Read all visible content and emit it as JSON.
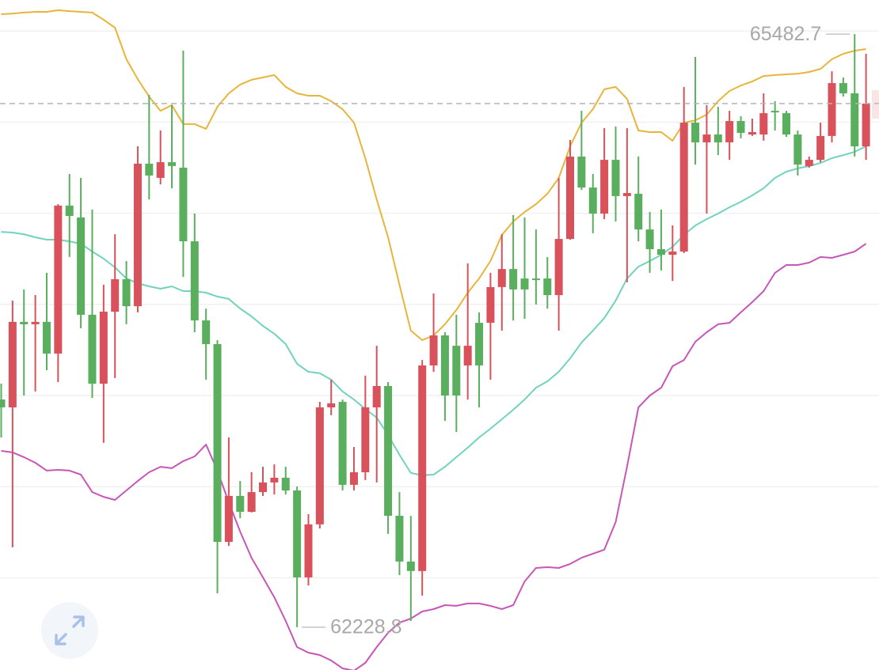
{
  "chart_data": {
    "type": "candlestick",
    "colors": {
      "up": "#d9515b",
      "down": "#5aaf5f"
    },
    "open": [
      63478,
      63435,
      63904,
      63891,
      63904,
      63730,
      64542,
      64477,
      63943,
      63565,
      63960,
      64138,
      63990,
      64772,
      64694,
      64780,
      64750,
      64346,
      63912,
      63782,
      62697,
      62949,
      62862,
      62970,
      63023,
      63049,
      62979,
      62502,
      62793,
      63435,
      63465,
      63010,
      63079,
      63435,
      63552,
      62840,
      62589,
      62537,
      63665,
      63830,
      63773,
      63665,
      63899,
      63899,
      64095,
      64194,
      64142,
      64142,
      64142,
      64051,
      64359,
      64811,
      64641,
      64498,
      64793,
      64594,
      64607,
      64411,
      64303,
      64272,
      64290,
      64997,
      64889,
      64932,
      64889,
      65006,
      64932,
      64932,
      65062,
      65049,
      64932,
      64759,
      64793,
      64924,
      65214,
      65158,
      64867
    ],
    "high": [
      63565,
      64021,
      64082,
      64051,
      64173,
      64550,
      64715,
      64694,
      64520,
      64108,
      64385,
      64238,
      64867,
      65149,
      64954,
      65093,
      65392,
      64498,
      63977,
      63804,
      63270,
      63031,
      63079,
      63109,
      63122,
      63109,
      63001,
      62849,
      63465,
      63587,
      63478,
      63218,
      63609,
      63773,
      63574,
      62970,
      62840,
      63695,
      64060,
      63847,
      63943,
      64225,
      63956,
      64173,
      64385,
      64490,
      64477,
      64411,
      64260,
      64694,
      64902,
      65062,
      64715,
      64967,
      64976,
      64967,
      64811,
      64507,
      64520,
      64433,
      65193,
      65358,
      65093,
      65084,
      65062,
      65032,
      65019,
      65158,
      65115,
      65062,
      64954,
      64811,
      64997,
      65279,
      65245,
      65482.7,
      65375
    ],
    "low": [
      63270,
      62667,
      63500,
      63522,
      63639,
      63574,
      64260,
      63869,
      63487,
      63240,
      63596,
      63891,
      63956,
      64576,
      64659,
      64637,
      64151,
      63847,
      63587,
      62415,
      62675,
      62827,
      62858,
      62949,
      62957,
      62957,
      62228.8,
      62458,
      62771,
      63392,
      62979,
      62979,
      63036,
      63023,
      62741,
      62515,
      62263,
      62402,
      63630,
      63361,
      63300,
      63478,
      63435,
      63587,
      63856,
      63912,
      63921,
      63999,
      63977,
      63856,
      64355,
      64628,
      64390,
      64468,
      64455,
      64121,
      64346,
      64173,
      64186,
      64129,
      64281,
      64767,
      64498,
      64819,
      64793,
      64911,
      64924,
      64898,
      64954,
      64919,
      64707,
      64750,
      64780,
      64889,
      65140,
      64811,
      64793
    ],
    "close": [
      63435,
      63904,
      63891,
      63904,
      63730,
      64542,
      64485,
      63943,
      63565,
      63960,
      64138,
      63990,
      64772,
      64707,
      64780,
      64759,
      64346,
      63912,
      63782,
      62697,
      62949,
      62862,
      62970,
      63023,
      63049,
      62979,
      62502,
      62793,
      63435,
      63457,
      63010,
      63079,
      63435,
      63552,
      62840,
      62589,
      62537,
      63665,
      63830,
      63500,
      63500,
      63773,
      63665,
      64095,
      64194,
      64082,
      64082,
      64138,
      64051,
      64359,
      64811,
      64641,
      64498,
      64793,
      64594,
      64611,
      64411,
      64303,
      64272,
      64290,
      64997,
      64889,
      64932,
      64889,
      65006,
      64941,
      64945,
      65049,
      65054,
      64932,
      64767,
      64793,
      64924,
      65214,
      65158,
      64867,
      65102
    ],
    "bands": {
      "upper": {
        "color": "#e8b53b",
        "values": [
          65592,
          65596,
          65601,
          65605,
          65605,
          65614,
          65609,
          65605,
          65601,
          65562,
          65518,
          65345,
          65236,
          65140,
          65062,
          65093,
          64989,
          64989,
          64963,
          65084,
          65158,
          65206,
          65232,
          65245,
          65258,
          65193,
          65158,
          65145,
          65145,
          65115,
          65071,
          64997,
          64802,
          64576,
          64368,
          64108,
          63856,
          63804,
          63830,
          63891,
          63969,
          64064,
          64142,
          64238,
          64381,
          64455,
          64507,
          64550,
          64607,
          64694,
          64867,
          64997,
          65071,
          65180,
          65193,
          65128,
          64954,
          64945,
          64945,
          64898,
          64997,
          65010,
          65041,
          65115,
          65171,
          65201,
          65223,
          65253,
          65258,
          65262,
          65266,
          65275,
          65292,
          65345,
          65375,
          65392,
          65401
        ]
      },
      "middle": {
        "color": "#71d3bd",
        "values": [
          64398,
          64394,
          64385,
          64368,
          64355,
          64355,
          64346,
          64333,
          64290,
          64251,
          64203,
          64142,
          64116,
          64099,
          64086,
          64099,
          64073,
          64073,
          64064,
          64043,
          64030,
          63977,
          63934,
          63882,
          63839,
          63782,
          63674,
          63630,
          63622,
          63587,
          63522,
          63478,
          63426,
          63379,
          63283,
          63175,
          63075,
          63062,
          63066,
          63109,
          63162,
          63214,
          63270,
          63318,
          63370,
          63422,
          63478,
          63543,
          63578,
          63630,
          63704,
          63791,
          63856,
          63925,
          64021,
          64142,
          64207,
          64238,
          64272,
          64316,
          64381,
          64433,
          64468,
          64498,
          64533,
          64563,
          64598,
          64637,
          64694,
          64728,
          64746,
          64759,
          64776,
          64802,
          64819,
          64837,
          64867
        ]
      },
      "lower": {
        "color": "#c756b8",
        "values": [
          63196,
          63188,
          63162,
          63131,
          63088,
          63092,
          63088,
          63066,
          62970,
          62944,
          62927,
          62979,
          63031,
          63079,
          63109,
          63101,
          63140,
          63166,
          63231,
          63088,
          62914,
          62753,
          62610,
          62502,
          62393,
          62263,
          62120,
          62089,
          62076,
          62046,
          62003,
          61990,
          62033,
          62120,
          62198,
          62254,
          62276,
          62315,
          62328,
          62350,
          62346,
          62359,
          62359,
          62346,
          62328,
          62350,
          62480,
          62554,
          62558,
          62554,
          62576,
          62610,
          62632,
          62654,
          62806,
          63109,
          63435,
          63500,
          63543,
          63661,
          63695,
          63795,
          63847,
          63891,
          63899,
          63956,
          64012,
          64073,
          64173,
          64216,
          64216,
          64229,
          64260,
          64255,
          64272,
          64290,
          64333
        ]
      }
    },
    "ylim": [
      61994,
      65670
    ],
    "grid_lines": [
      65500,
      65000,
      64500,
      64000,
      63500,
      63000,
      62500
    ],
    "grid": true
  }
}
